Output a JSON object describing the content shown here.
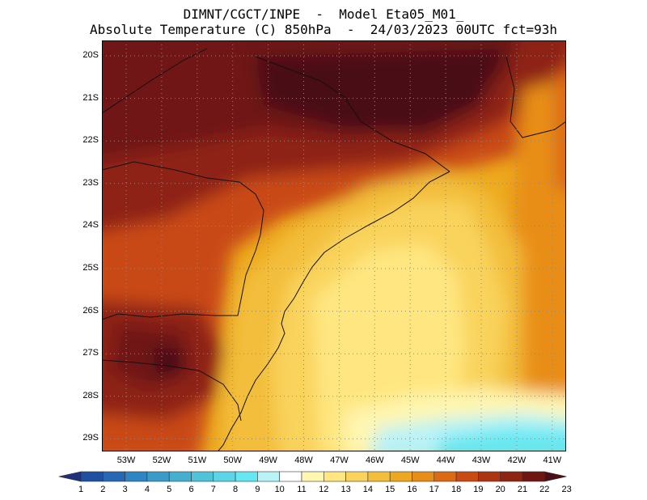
{
  "header": {
    "line1": "DIMNT/CGCT/INPE  -  Model Eta05_M01_",
    "line2": "Absolute Temperature (C) 850hPa  -  24/03/2023 00UTC fct=93h"
  },
  "map": {
    "lat_labels": [
      "20S",
      "21S",
      "22S",
      "23S",
      "24S",
      "25S",
      "26S",
      "27S",
      "28S",
      "29S"
    ],
    "lon_labels": [
      "53W",
      "52W",
      "51W",
      "50W",
      "49W",
      "48W",
      "47W",
      "46W",
      "45W",
      "44W",
      "43W",
      "42W",
      "41W"
    ],
    "grid": true
  },
  "colorbar": {
    "labels": [
      "1",
      "2",
      "3",
      "4",
      "5",
      "6",
      "7",
      "8",
      "9",
      "10",
      "11",
      "12",
      "13",
      "14",
      "15",
      "16",
      "17",
      "18",
      "19",
      "20",
      "21",
      "22",
      "23"
    ],
    "colors": [
      "#20307a",
      "#1f4fa0",
      "#2668b4",
      "#2d85c4",
      "#3a9bc9",
      "#46afcf",
      "#4fc3d9",
      "#5bd6e6",
      "#66e8f2",
      "#b8f3f8",
      "#ffffff",
      "#fff6b0",
      "#ffe680",
      "#f9d35c",
      "#f3be3a",
      "#eda91e",
      "#e88e16",
      "#dc6a14",
      "#c94a12",
      "#ad3411",
      "#8e2412",
      "#6f1512",
      "#4a0f17"
    ]
  }
}
